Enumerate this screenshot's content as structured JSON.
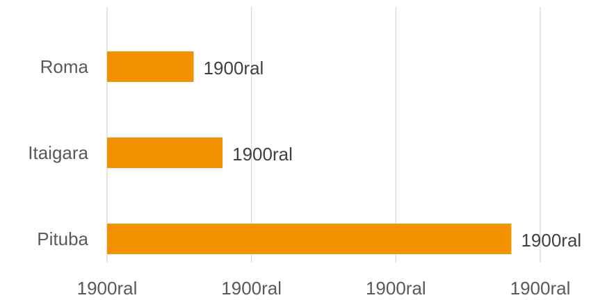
{
  "chart_data": {
    "type": "bar",
    "orientation": "horizontal",
    "categories": [
      "Roma",
      "Itaigara",
      "Pituba"
    ],
    "values": [
      0.6,
      0.8,
      2.8
    ],
    "data_labels": [
      "1900ral",
      "1900ral",
      "1900ral"
    ],
    "xlim": [
      0,
      3
    ],
    "x_ticks": [
      0,
      1,
      2,
      3
    ],
    "x_tick_labels": [
      "1900ral",
      "1900ral",
      "1900ral",
      "1900ral"
    ],
    "title": "",
    "xlabel": "",
    "ylabel": "",
    "grid": "vertical",
    "legend": "none",
    "colors": {
      "bar": "#f29200",
      "grid": "#d9d9d9",
      "text": "#595959"
    }
  }
}
